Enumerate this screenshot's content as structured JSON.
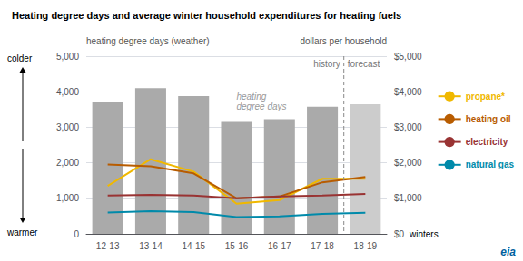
{
  "chart_data": {
    "type": "bar",
    "title": "Heating degree days and average winter household expenditures for heating fuels",
    "ylabel": "heating degree days (weather)",
    "y2label": "dollars per household",
    "xlabel": "winters",
    "categories": [
      "12-13",
      "13-14",
      "14-15",
      "15-16",
      "16-17",
      "17-18",
      "18-19"
    ],
    "values": [
      3700,
      4100,
      3875,
      3150,
      3225,
      3575,
      3650
    ],
    "colors": [
      "#aaaaaa",
      "#aaaaaa",
      "#aaaaaa",
      "#aaaaaa",
      "#aaaaaa",
      "#aaaaaa",
      "#cccccc"
    ],
    "ylim": [
      0,
      5000
    ],
    "yticks": [
      0,
      {
        "value": 1000,
        "label": "1,000"
      },
      {
        "value": 2000,
        "label": "2,000"
      },
      {
        "value": 3000,
        "label": "3,000"
      },
      {
        "value": 4000,
        "label": "4,000"
      },
      {
        "value": 5000,
        "label": "5,000"
      }
    ],
    "y2lim": [
      0,
      5000
    ],
    "y2ticks": [
      {
        "value": 0,
        "label": "$0"
      },
      {
        "value": 1000,
        "label": "$1,000"
      },
      {
        "value": 2000,
        "label": "$2,000"
      },
      {
        "value": 3000,
        "label": "$3,000"
      },
      {
        "value": 4000,
        "label": "$4,000"
      },
      {
        "value": 5000,
        "label": "$5,000"
      }
    ],
    "grid": true,
    "series": [
      {
        "name": "propane*",
        "type": "line",
        "axis": "y2",
        "color": "#f0b800",
        "values": [
          1350,
          2100,
          1750,
          850,
          950,
          1550,
          1550
        ]
      },
      {
        "name": "heating oil",
        "type": "line",
        "axis": "y2",
        "color": "#b85c00",
        "values": [
          1950,
          1900,
          1700,
          1000,
          1050,
          1450,
          1600
        ]
      },
      {
        "name": "electricity",
        "type": "line",
        "axis": "y2",
        "color": "#993333",
        "values": [
          1075,
          1100,
          1075,
          1000,
          1050,
          1075,
          1125
        ]
      },
      {
        "name": "natural gas",
        "type": "line",
        "axis": "y2",
        "color": "#008aaa",
        "values": [
          600,
          640,
          610,
          470,
          490,
          560,
          590
        ]
      }
    ],
    "annotations": [
      {
        "text": "history",
        "category": "17-18"
      },
      {
        "text": "forecast",
        "category": "18-19"
      },
      {
        "text": "heating\ndegree days",
        "category": "15-16"
      },
      {
        "text": "colder"
      },
      {
        "text": "warmer"
      },
      {
        "text": "eia",
        "color": "#005f9e"
      }
    ]
  }
}
